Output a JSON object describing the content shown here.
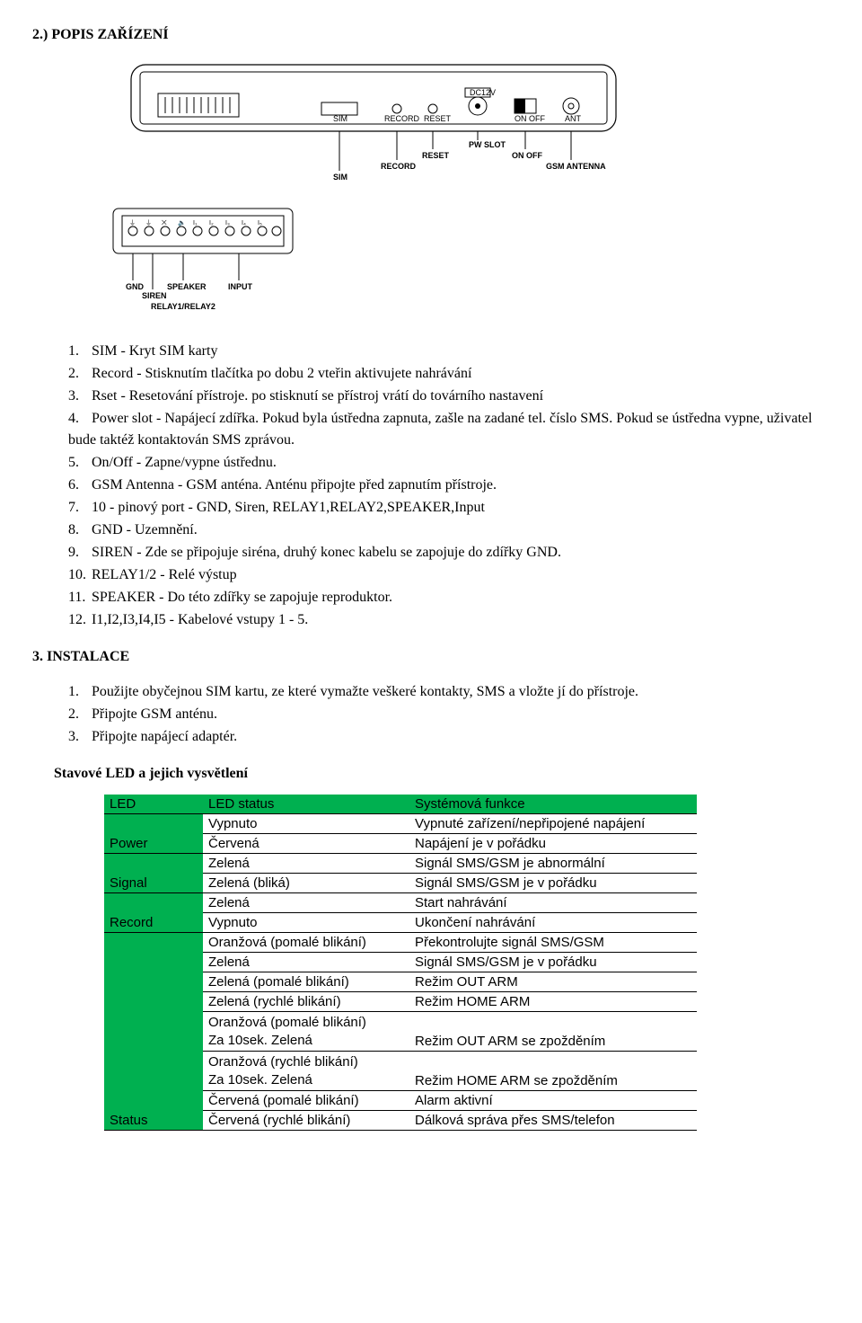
{
  "section2": {
    "title": "2.) POPIS ZAŘÍZENÍ",
    "diagram": {
      "top_labels": {
        "dc12v": "DC12V",
        "pw_slot": "PW SLOT"
      },
      "top_row": [
        "SIM",
        "RECORD",
        "RESET",
        "ON OFF",
        "ANT"
      ],
      "mid_row": [
        "SIM",
        "RECORD",
        "RESET",
        "ON OFF",
        "GSM ANTENNA"
      ],
      "bottom_row": [
        "GND",
        "SIREN",
        "SPEAKER",
        "INPUT"
      ],
      "relay_label": "RELAY1/RELAY2"
    },
    "items": [
      "SIM - Kryt SIM karty",
      "Record - Stisknutím tlačítka po dobu 2 vteřin aktivujete nahrávání",
      "Rset - Resetování přístroje. po stisknutí se přístroj vrátí do továrního nastavení",
      "Power slot - Napájecí zdířka. Pokud byla ústředna zapnuta, zašle na zadané tel. číslo SMS. Pokud se ústředna vypne, uživatel bude taktéž kontaktován SMS zprávou.",
      "On/Off - Zapne/vypne ústřednu.",
      "GSM Antenna - GSM anténa. Anténu připojte před zapnutím přístroje.",
      "10 - pinový port - GND, Siren, RELAY1,RELAY2,SPEAKER,Input",
      "GND - Uzemnění.",
      "SIREN - Zde se připojuje siréna, druhý konec kabelu se zapojuje do zdířky GND.",
      "RELAY1/2 - Relé výstup",
      "SPEAKER - Do této zdířky se zapojuje reproduktor.",
      "I1,I2,I3,I4,I5 - Kabelové vstupy 1 - 5."
    ]
  },
  "section3": {
    "title": "3. INSTALACE",
    "items": [
      "Použijte obyčejnou SIM kartu, ze které vymažte veškeré kontakty, SMS a vložte jí do přístroje.",
      "Připojte GSM anténu.",
      "Připojte napájecí adaptér."
    ]
  },
  "led_section": {
    "title": "Stavové LED a jejich vysvětlení",
    "header_bg": "#00b050",
    "headers": [
      "LED",
      "LED status",
      "Systémová funkce"
    ],
    "groups": [
      {
        "category": "Power",
        "rows": [
          {
            "status": "Vypnuto",
            "func": "Vypnuté zařízení/nepřipojené napájení"
          },
          {
            "status": "Červená",
            "func": "Napájení je v pořádku"
          }
        ]
      },
      {
        "category": "Signal",
        "rows": [
          {
            "status": "Zelená",
            "func": "Signál SMS/GSM je abnormální"
          },
          {
            "status": "Zelená (bliká)",
            "func": "Signál SMS/GSM je v pořádku"
          }
        ]
      },
      {
        "category": "Record",
        "rows": [
          {
            "status": "Zelená",
            "func": "Start nahrávání"
          },
          {
            "status": "Vypnuto",
            "func": "Ukončení nahrávání"
          }
        ]
      },
      {
        "category": "Status",
        "rows": [
          {
            "status": "Oranžová (pomalé blikání)",
            "func": "Překontrolujte signál SMS/GSM"
          },
          {
            "status": "Zelená",
            "func": "Signál SMS/GSM je v pořádku"
          },
          {
            "status": "Zelená (pomalé blikání)",
            "func": "Režim OUT ARM"
          },
          {
            "status": "Zelená (rychlé blikání)",
            "func": "Režim HOME ARM"
          },
          {
            "status": "Oranžová (pomalé blikání)\nZa 10sek. Zelená",
            "func": "Režim OUT ARM se zpožděním"
          },
          {
            "status": "Oranžová (rychlé blikání)\nZa 10sek. Zelená",
            "func": "Režim HOME ARM se zpožděním"
          },
          {
            "status": "Červená (pomalé blikání)",
            "func": "Alarm aktivní"
          },
          {
            "status": "Červená (rychlé blikání)",
            "func": "Dálková správa přes SMS/telefon"
          }
        ]
      }
    ]
  }
}
